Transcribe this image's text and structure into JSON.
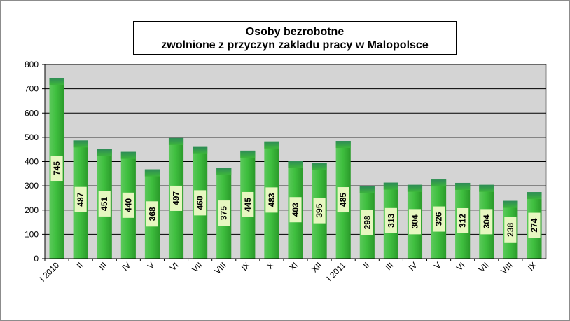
{
  "chart_data": {
    "type": "bar",
    "title_line1": "Osoby bezrobotne",
    "title_line2": "zwolnione z przyczyn zakladu pracy w Malopolsce",
    "categories": [
      "I 2010",
      "II",
      "III",
      "IV",
      "V",
      "VI",
      "VII",
      "VIII",
      "IX",
      "X",
      "XI",
      "XII",
      "I 2011",
      "II",
      "III",
      "IV",
      "V",
      "VI",
      "VII",
      "VIII",
      "IX"
    ],
    "values": [
      745,
      487,
      451,
      440,
      368,
      497,
      460,
      375,
      445,
      483,
      403,
      395,
      485,
      298,
      313,
      304,
      326,
      312,
      304,
      238,
      274
    ],
    "ylim": [
      0,
      800
    ],
    "yticks": [
      0,
      100,
      200,
      300,
      400,
      500,
      600,
      700,
      800
    ],
    "grid": true,
    "legend": "none",
    "colors": {
      "bar_main": "#3cb43c",
      "bar_top": "#2e8b57",
      "plot_bg": "#d4d4d4",
      "label_bg": "#e6f7c0"
    }
  }
}
